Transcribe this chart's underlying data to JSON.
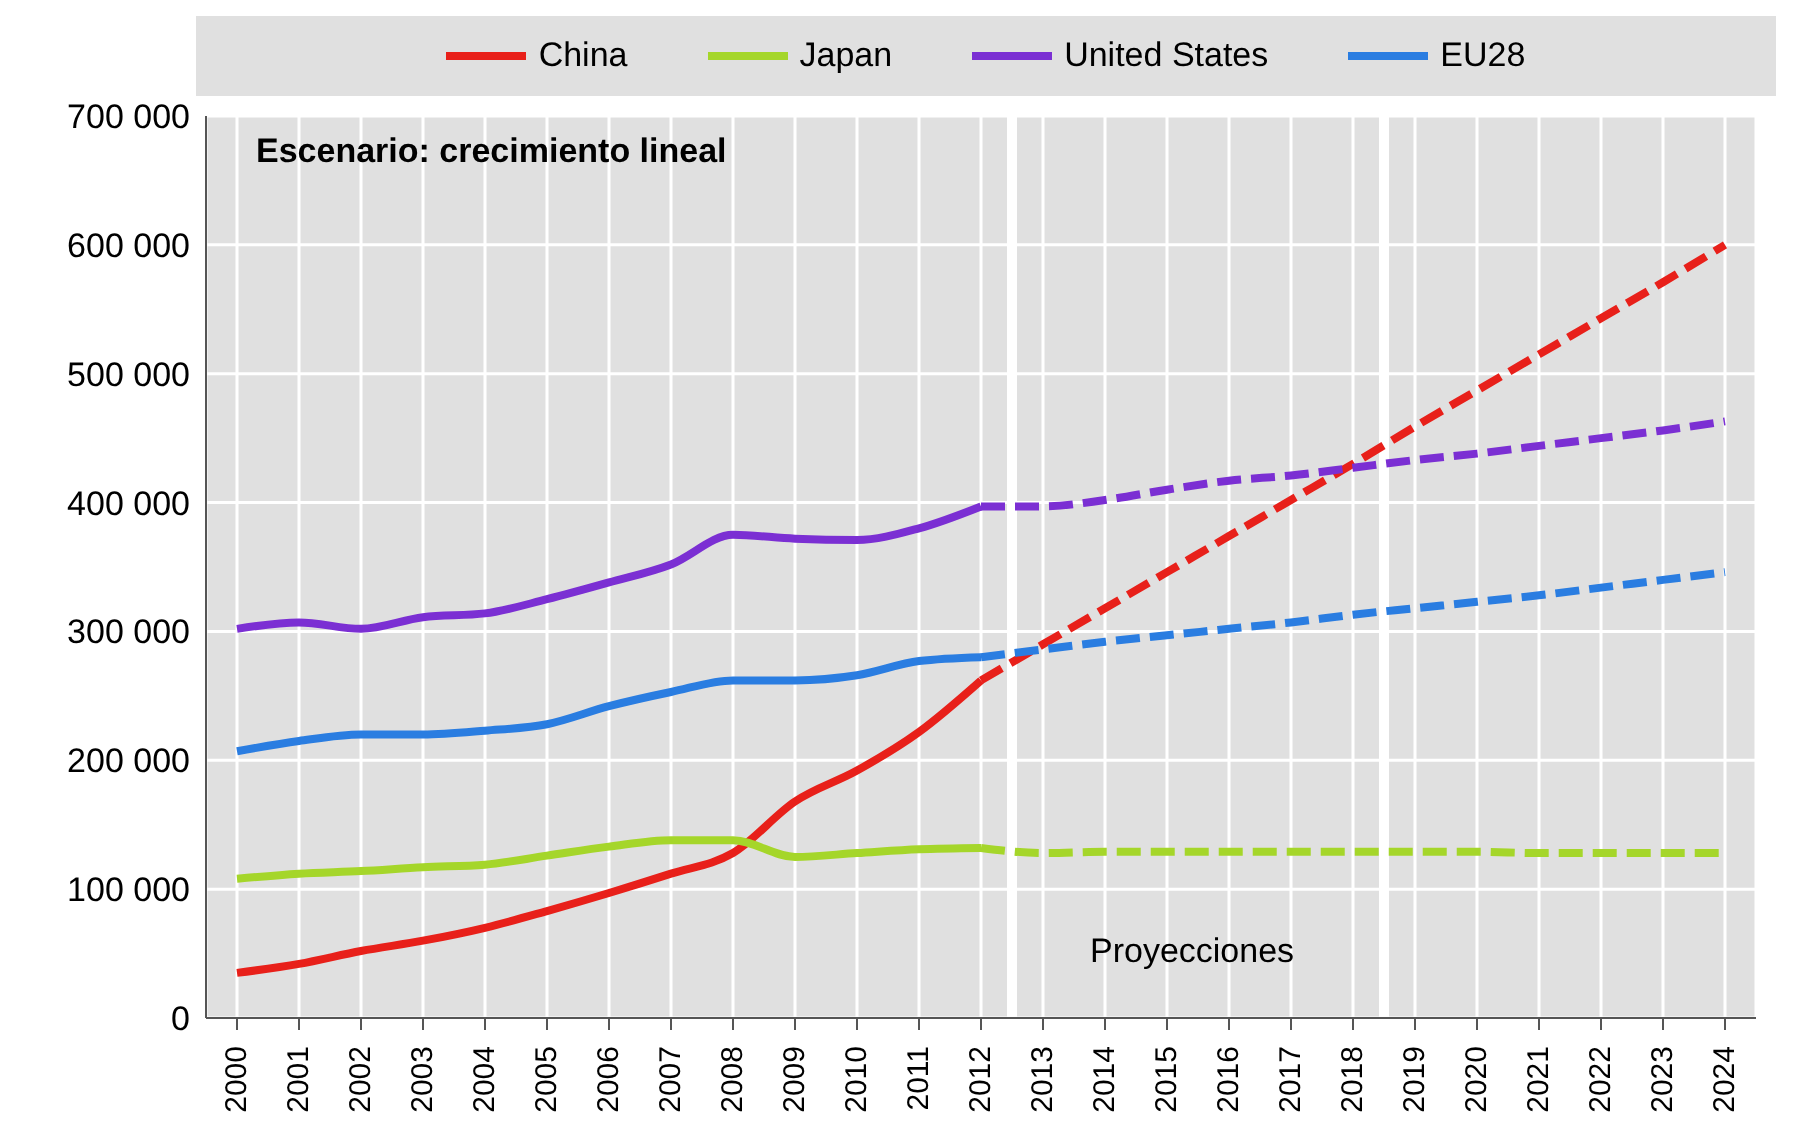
{
  "chart_data": {
    "type": "line",
    "legend": "top",
    "grid": true,
    "marker": "none",
    "annotations": [
      "Escenario: crecimiento lineal",
      "Proyecciones"
    ],
    "xlim": [
      1999.5,
      2024.5
    ],
    "xticks": [
      2000,
      2001,
      2002,
      2003,
      2004,
      2005,
      2006,
      2007,
      2008,
      2009,
      2010,
      2011,
      2012,
      2013,
      2014,
      2015,
      2016,
      2017,
      2018,
      2019,
      2020,
      2021,
      2022,
      2023,
      2024
    ],
    "ylim": [
      0,
      700000
    ],
    "yticks": [
      0,
      {
        "value": 100000,
        "label": "100 000"
      },
      {
        "value": 200000,
        "label": "200 000"
      },
      {
        "value": 300000,
        "label": "300 000"
      },
      {
        "value": 400000,
        "label": "400 000"
      },
      {
        "value": 500000,
        "label": "500 000"
      },
      {
        "value": 600000,
        "label": "600 000"
      },
      {
        "value": 700000,
        "label": "700 000"
      }
    ],
    "ref_lines": [
      {
        "axis": "x",
        "value": 2012.5,
        "color": "#ffffff"
      },
      {
        "axis": "x",
        "value": 2018.5,
        "color": "#ffffff"
      }
    ],
    "series": [
      {
        "name": "China",
        "color": "#e8201a",
        "line_style": "solid",
        "x": [
          2000,
          2001,
          2002,
          2003,
          2004,
          2005,
          2006,
          2007,
          2008,
          2009,
          2010,
          2011,
          2012
        ],
        "values": [
          35000,
          42000,
          52000,
          60000,
          70000,
          83000,
          97000,
          112000,
          128000,
          168000,
          192000,
          222000,
          262000
        ]
      },
      {
        "name": "Japan",
        "color": "#a5d62a",
        "line_style": "solid",
        "x": [
          2000,
          2001,
          2002,
          2003,
          2004,
          2005,
          2006,
          2007,
          2008,
          2009,
          2010,
          2011,
          2012
        ],
        "values": [
          108000,
          112000,
          114000,
          117000,
          119000,
          126000,
          133000,
          138000,
          138000,
          125000,
          128000,
          131000,
          132000
        ]
      },
      {
        "name": "United States",
        "color": "#7b2fd3",
        "line_style": "solid",
        "x": [
          2000,
          2001,
          2002,
          2003,
          2004,
          2005,
          2006,
          2007,
          2008,
          2009,
          2010,
          2011,
          2012
        ],
        "values": [
          302000,
          307000,
          302000,
          311000,
          314000,
          325000,
          338000,
          352000,
          375000,
          372000,
          371000,
          380000,
          397000
        ]
      },
      {
        "name": "EU28",
        "color": "#2a7de1",
        "line_style": "solid",
        "x": [
          2000,
          2001,
          2002,
          2003,
          2004,
          2005,
          2006,
          2007,
          2008,
          2009,
          2010,
          2011,
          2012
        ],
        "values": [
          207000,
          215000,
          220000,
          220000,
          223000,
          228000,
          242000,
          253000,
          262000,
          262000,
          266000,
          277000,
          280000
        ]
      },
      {
        "color": "#e8201a",
        "line_style": "dashed",
        "x": [
          2012,
          2013,
          2014,
          2015,
          2016,
          2017,
          2018,
          2019,
          2020,
          2021,
          2022,
          2023,
          2024
        ],
        "values": [
          262000,
          290000,
          318000,
          346000,
          374000,
          402000,
          430000,
          459000,
          487000,
          515000,
          543000,
          571000,
          600000
        ]
      },
      {
        "color": "#a5d62a",
        "line_style": "dashed",
        "x": [
          2012,
          2013,
          2014,
          2015,
          2016,
          2017,
          2018,
          2019,
          2020,
          2021,
          2022,
          2023,
          2024
        ],
        "values": [
          132000,
          128000,
          129000,
          129000,
          129000,
          129000,
          129000,
          129000,
          129000,
          128000,
          128000,
          128000,
          128000
        ]
      },
      {
        "color": "#7b2fd3",
        "line_style": "dashed",
        "x": [
          2012,
          2013,
          2014,
          2015,
          2016,
          2017,
          2018,
          2019,
          2020,
          2021,
          2022,
          2023,
          2024
        ],
        "values": [
          397000,
          397000,
          402000,
          410000,
          417000,
          421000,
          427000,
          433000,
          438000,
          444000,
          450000,
          456000,
          463000
        ]
      },
      {
        "color": "#2a7de1",
        "line_style": "dashed",
        "x": [
          2012,
          2013,
          2014,
          2015,
          2016,
          2017,
          2018,
          2019,
          2020,
          2021,
          2022,
          2023,
          2024
        ],
        "values": [
          280000,
          286000,
          292000,
          297000,
          302000,
          307000,
          313000,
          318000,
          323000,
          328000,
          334000,
          340000,
          346000
        ]
      }
    ]
  }
}
